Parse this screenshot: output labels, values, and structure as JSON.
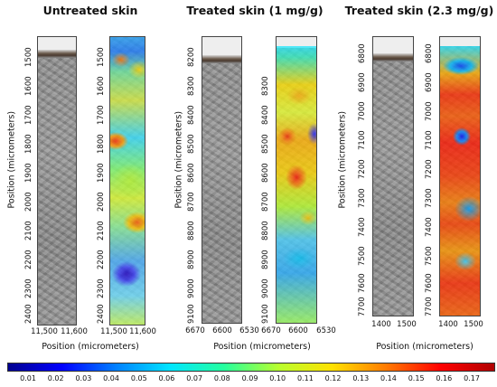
{
  "panels": [
    {
      "title": "Untreated skin",
      "y_ticks": [
        "1500",
        "1600",
        "1700",
        "1800",
        "1900",
        "2000",
        "2100",
        "2200",
        "2300",
        "2400"
      ],
      "y_ticks_overlay": [
        "1500",
        "1600",
        "1700",
        "1800",
        "1900",
        "2000",
        "2100",
        "2200",
        "2300",
        "2400"
      ],
      "x_ticks_plain": [
        "11,500",
        "11,600"
      ],
      "x_ticks_overlay": [
        "11,500",
        "11,600"
      ]
    },
    {
      "title": "Treated skin (1 mg/g)",
      "y_ticks": [
        "8200",
        "8300",
        "8400",
        "8500",
        "8600",
        "8700",
        "8800",
        "8900",
        "9000",
        "9100"
      ],
      "y_ticks_overlay": [
        "8300",
        "8400",
        "8500",
        "8600",
        "8700",
        "8800",
        "8900",
        "9000",
        "9100"
      ],
      "x_ticks_plain": [
        "6670",
        "6600",
        "6530"
      ],
      "x_ticks_overlay": [
        "6670",
        "6600",
        "6530"
      ]
    },
    {
      "title": "Treated skin (2.3 mg/g)",
      "y_ticks": [
        "6800",
        "6900",
        "7000",
        "7100",
        "7200",
        "7300",
        "7400",
        "7500",
        "7600",
        "7700"
      ],
      "y_ticks_overlay": [
        "6800",
        "6900",
        "7000",
        "7100",
        "7200",
        "7300",
        "7400",
        "7500",
        "7600",
        "7700"
      ],
      "x_ticks_plain": [
        "1400",
        "1500"
      ],
      "x_ticks_overlay": [
        "1400",
        "1500"
      ]
    }
  ],
  "y_axis_title": "Position (micrometers)",
  "x_axis_title": "Position (micrometers)",
  "colorbar": {
    "labels": [
      "0.01",
      "0.02",
      "0.03",
      "0.04",
      "0.05",
      "0.06",
      "0.07",
      "0.08",
      "0.09",
      "0.10",
      "0.11",
      "0.12",
      "0.13",
      "0.14",
      "0.15",
      "0.16",
      "0.17"
    ],
    "colors": [
      "#00008f",
      "#0000ff",
      "#0080ff",
      "#00e5ff",
      "#25ff9e",
      "#b8ff2e",
      "#ffe100",
      "#ff7a00",
      "#ff0000",
      "#b00000"
    ]
  }
}
